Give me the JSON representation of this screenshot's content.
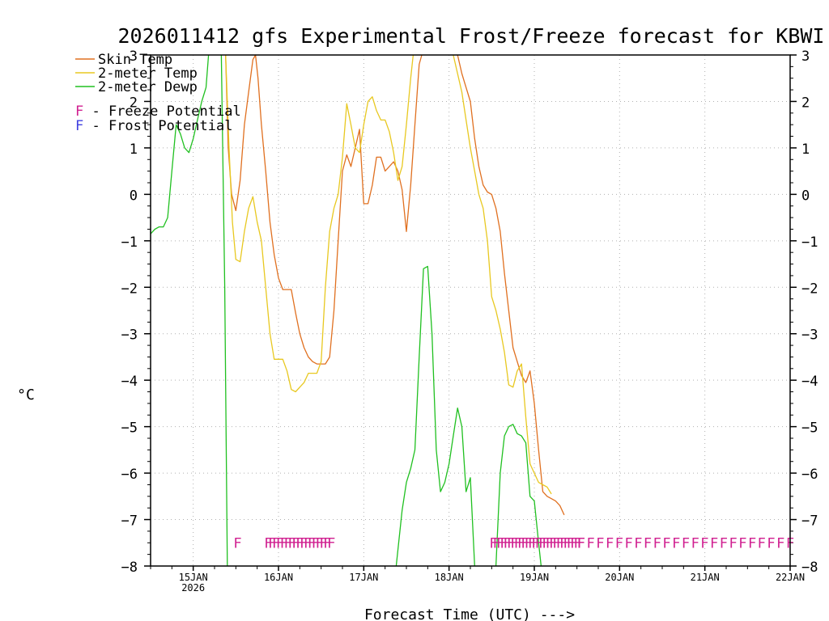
{
  "chart_data": {
    "type": "line",
    "title": "2026011412 gfs Experimental Frost/Freeze forecast for KBWI",
    "xlabel": "Forecast Time (UTC) --->",
    "ylabel": "°C",
    "ylim": [
      -8,
      3
    ],
    "xlim_days": [
      14.5,
      22.0
    ],
    "yticks": [
      -8,
      -7,
      -6,
      -5,
      -4,
      -3,
      -2,
      -1,
      0,
      1,
      2,
      3
    ],
    "ytick_labels": [
      "−8",
      "−7",
      "−6",
      "−5",
      "−4",
      "−3",
      "−2",
      "−1",
      "0",
      "1",
      "2",
      "3"
    ],
    "xticks": [
      {
        "day": 15,
        "label": "15JAN",
        "sublabel": "2026"
      },
      {
        "day": 16,
        "label": "16JAN",
        "sublabel": ""
      },
      {
        "day": 17,
        "label": "17JAN",
        "sublabel": ""
      },
      {
        "day": 18,
        "label": "18JAN",
        "sublabel": ""
      },
      {
        "day": 19,
        "label": "19JAN",
        "sublabel": ""
      },
      {
        "day": 20,
        "label": "20JAN",
        "sublabel": ""
      },
      {
        "day": 21,
        "label": "21JAN",
        "sublabel": ""
      },
      {
        "day": 22,
        "label": "22JAN",
        "sublabel": ""
      }
    ],
    "grid": true,
    "legend_position": "top-left",
    "legend": [
      {
        "name": "Skin Temp",
        "color": "#e07020"
      },
      {
        "name": "2-meter Temp",
        "color": "#e8c820"
      },
      {
        "name": "2-meter Dewp",
        "color": "#20c020"
      }
    ],
    "potential_legend": [
      {
        "symbol": "F",
        "text": " - Freeze Potential",
        "color": "#d02090"
      },
      {
        "symbol": "F",
        "text": " - Frost Potential",
        "color": "#4040e0"
      }
    ],
    "series": [
      {
        "name": "Skin Temp",
        "color": "#e07020",
        "points": [
          [
            15.38,
            3.0
          ],
          [
            15.41,
            1.0
          ],
          [
            15.45,
            0.0
          ],
          [
            15.5,
            -0.35
          ],
          [
            15.55,
            0.3
          ],
          [
            15.6,
            1.5
          ],
          [
            15.65,
            2.2
          ],
          [
            15.7,
            2.9
          ],
          [
            15.73,
            3.0
          ],
          [
            15.76,
            2.5
          ],
          [
            15.8,
            1.5
          ],
          [
            15.85,
            0.5
          ],
          [
            15.9,
            -0.6
          ],
          [
            15.95,
            -1.3
          ],
          [
            16.0,
            -1.8
          ],
          [
            16.05,
            -2.05
          ],
          [
            16.1,
            -2.05
          ],
          [
            16.15,
            -2.05
          ],
          [
            16.2,
            -2.55
          ],
          [
            16.25,
            -3.0
          ],
          [
            16.3,
            -3.3
          ],
          [
            16.35,
            -3.5
          ],
          [
            16.4,
            -3.6
          ],
          [
            16.45,
            -3.65
          ],
          [
            16.5,
            -3.65
          ],
          [
            16.55,
            -3.65
          ],
          [
            16.6,
            -3.5
          ],
          [
            16.65,
            -2.5
          ],
          [
            16.7,
            -1.0
          ],
          [
            16.75,
            0.5
          ],
          [
            16.8,
            0.85
          ],
          [
            16.85,
            0.6
          ],
          [
            16.9,
            1.0
          ],
          [
            16.95,
            1.4
          ],
          [
            17.0,
            -0.2
          ],
          [
            17.05,
            -0.2
          ],
          [
            17.1,
            0.2
          ],
          [
            17.15,
            0.8
          ],
          [
            17.2,
            0.8
          ],
          [
            17.25,
            0.5
          ],
          [
            17.3,
            0.6
          ],
          [
            17.35,
            0.7
          ],
          [
            17.4,
            0.5
          ],
          [
            17.45,
            0.1
          ],
          [
            17.5,
            -0.8
          ],
          [
            17.55,
            0.2
          ],
          [
            17.6,
            1.5
          ],
          [
            17.65,
            2.8
          ],
          [
            17.68,
            3.0
          ]
        ]
      },
      {
        "name": "Skin Temp",
        "color": "#e07020",
        "points": [
          [
            18.1,
            3.0
          ],
          [
            18.15,
            2.6
          ],
          [
            18.2,
            2.3
          ],
          [
            18.25,
            2.0
          ],
          [
            18.3,
            1.2
          ],
          [
            18.35,
            0.6
          ],
          [
            18.4,
            0.2
          ],
          [
            18.45,
            0.05
          ],
          [
            18.5,
            0.0
          ],
          [
            18.55,
            -0.3
          ],
          [
            18.6,
            -0.8
          ],
          [
            18.65,
            -1.7
          ],
          [
            18.7,
            -2.5
          ],
          [
            18.75,
            -3.3
          ],
          [
            18.8,
            -3.6
          ],
          [
            18.85,
            -3.9
          ],
          [
            18.9,
            -4.05
          ],
          [
            18.95,
            -3.8
          ],
          [
            19.0,
            -4.5
          ],
          [
            19.05,
            -5.5
          ],
          [
            19.1,
            -6.4
          ],
          [
            19.15,
            -6.5
          ],
          [
            19.2,
            -6.55
          ],
          [
            19.25,
            -6.6
          ],
          [
            19.3,
            -6.7
          ],
          [
            19.35,
            -6.9
          ]
        ]
      },
      {
        "name": "2-meter Temp",
        "color": "#e8c820",
        "points": [
          [
            15.38,
            3.0
          ],
          [
            15.42,
            1.0
          ],
          [
            15.46,
            -0.6
          ],
          [
            15.5,
            -1.4
          ],
          [
            15.55,
            -1.45
          ],
          [
            15.6,
            -0.8
          ],
          [
            15.65,
            -0.3
          ],
          [
            15.7,
            -0.05
          ],
          [
            15.75,
            -0.6
          ],
          [
            15.8,
            -1.0
          ],
          [
            15.85,
            -2.0
          ],
          [
            15.9,
            -3.0
          ],
          [
            15.95,
            -3.55
          ],
          [
            16.0,
            -3.55
          ],
          [
            16.05,
            -3.55
          ],
          [
            16.1,
            -3.8
          ],
          [
            16.15,
            -4.2
          ],
          [
            16.2,
            -4.25
          ],
          [
            16.25,
            -4.15
          ],
          [
            16.3,
            -4.05
          ],
          [
            16.35,
            -3.85
          ],
          [
            16.4,
            -3.85
          ],
          [
            16.45,
            -3.85
          ],
          [
            16.5,
            -3.6
          ],
          [
            16.55,
            -2.0
          ],
          [
            16.6,
            -0.8
          ],
          [
            16.65,
            -0.3
          ],
          [
            16.7,
            0.0
          ],
          [
            16.75,
            0.8
          ],
          [
            16.8,
            1.95
          ],
          [
            16.85,
            1.5
          ],
          [
            16.9,
            1.0
          ],
          [
            16.95,
            0.9
          ],
          [
            17.0,
            1.5
          ],
          [
            17.05,
            2.0
          ],
          [
            17.1,
            2.1
          ],
          [
            17.15,
            1.8
          ],
          [
            17.2,
            1.6
          ],
          [
            17.25,
            1.6
          ],
          [
            17.3,
            1.35
          ],
          [
            17.35,
            0.9
          ],
          [
            17.4,
            0.3
          ],
          [
            17.45,
            0.6
          ],
          [
            17.5,
            1.5
          ],
          [
            17.55,
            2.5
          ],
          [
            17.58,
            3.0
          ]
        ]
      },
      {
        "name": "2-meter Temp",
        "color": "#e8c820",
        "points": [
          [
            18.05,
            3.0
          ],
          [
            18.1,
            2.6
          ],
          [
            18.15,
            2.2
          ],
          [
            18.2,
            1.6
          ],
          [
            18.25,
            1.0
          ],
          [
            18.3,
            0.5
          ],
          [
            18.35,
            0.0
          ],
          [
            18.4,
            -0.3
          ],
          [
            18.45,
            -1.0
          ],
          [
            18.5,
            -2.2
          ],
          [
            18.55,
            -2.5
          ],
          [
            18.6,
            -2.9
          ],
          [
            18.65,
            -3.4
          ],
          [
            18.7,
            -4.1
          ],
          [
            18.75,
            -4.15
          ],
          [
            18.8,
            -3.8
          ],
          [
            18.85,
            -3.65
          ],
          [
            18.9,
            -4.8
          ],
          [
            18.95,
            -5.8
          ],
          [
            19.0,
            -6.0
          ],
          [
            19.05,
            -6.2
          ],
          [
            19.1,
            -6.25
          ],
          [
            19.15,
            -6.3
          ],
          [
            19.2,
            -6.45
          ]
        ]
      },
      {
        "name": "2-meter Dewp",
        "color": "#20c020",
        "points": [
          [
            14.5,
            -0.85
          ],
          [
            14.55,
            -0.75
          ],
          [
            14.6,
            -0.7
          ],
          [
            14.65,
            -0.7
          ],
          [
            14.7,
            -0.5
          ],
          [
            14.75,
            0.5
          ],
          [
            14.8,
            1.5
          ],
          [
            14.85,
            1.3
          ],
          [
            14.9,
            1.0
          ],
          [
            14.95,
            0.9
          ],
          [
            15.0,
            1.2
          ],
          [
            15.05,
            1.6
          ],
          [
            15.1,
            2.0
          ],
          [
            15.15,
            2.3
          ],
          [
            15.18,
            3.0
          ]
        ]
      },
      {
        "name": "2-meter Dewp",
        "color": "#20c020",
        "points": [
          [
            15.33,
            3.0
          ],
          [
            15.37,
            -2.0
          ],
          [
            15.4,
            -8.0
          ]
        ]
      },
      {
        "name": "2-meter Dewp",
        "color": "#20c020",
        "points": [
          [
            17.38,
            -8.0
          ],
          [
            17.45,
            -6.8
          ],
          [
            17.5,
            -6.2
          ],
          [
            17.55,
            -5.9
          ],
          [
            17.6,
            -5.5
          ],
          [
            17.65,
            -3.5
          ],
          [
            17.7,
            -1.6
          ],
          [
            17.75,
            -1.55
          ],
          [
            17.8,
            -3.0
          ],
          [
            17.85,
            -5.5
          ],
          [
            17.9,
            -6.4
          ],
          [
            17.95,
            -6.2
          ],
          [
            18.0,
            -5.8
          ],
          [
            18.05,
            -5.2
          ],
          [
            18.1,
            -4.6
          ],
          [
            18.15,
            -5.0
          ],
          [
            18.2,
            -6.4
          ],
          [
            18.25,
            -6.1
          ],
          [
            18.3,
            -8.0
          ]
        ]
      },
      {
        "name": "2-meter Dewp",
        "color": "#20c020",
        "points": [
          [
            18.55,
            -8.0
          ],
          [
            18.6,
            -6.0
          ],
          [
            18.65,
            -5.2
          ],
          [
            18.7,
            -5.0
          ],
          [
            18.75,
            -4.95
          ],
          [
            18.8,
            -5.15
          ],
          [
            18.85,
            -5.2
          ],
          [
            18.9,
            -5.35
          ],
          [
            18.95,
            -6.5
          ],
          [
            19.0,
            -6.6
          ],
          [
            19.05,
            -7.5
          ],
          [
            19.08,
            -8.0
          ]
        ]
      }
    ],
    "freeze_potential_markers": [
      {
        "symbol": "F",
        "color": "#d02090",
        "style": "single",
        "day": 15.52
      },
      {
        "symbol": "F",
        "color": "#d02090",
        "style": "dense",
        "day_start": 15.88,
        "day_end": 16.62,
        "count": 17
      },
      {
        "symbol": "F",
        "color": "#d02090",
        "style": "dense",
        "day_start": 18.52,
        "day_end": 19.55,
        "count": 26
      },
      {
        "symbol": "F",
        "color": "#d02090",
        "style": "spaced",
        "day_start": 19.55,
        "day_end": 22.0,
        "count": 23
      }
    ]
  }
}
